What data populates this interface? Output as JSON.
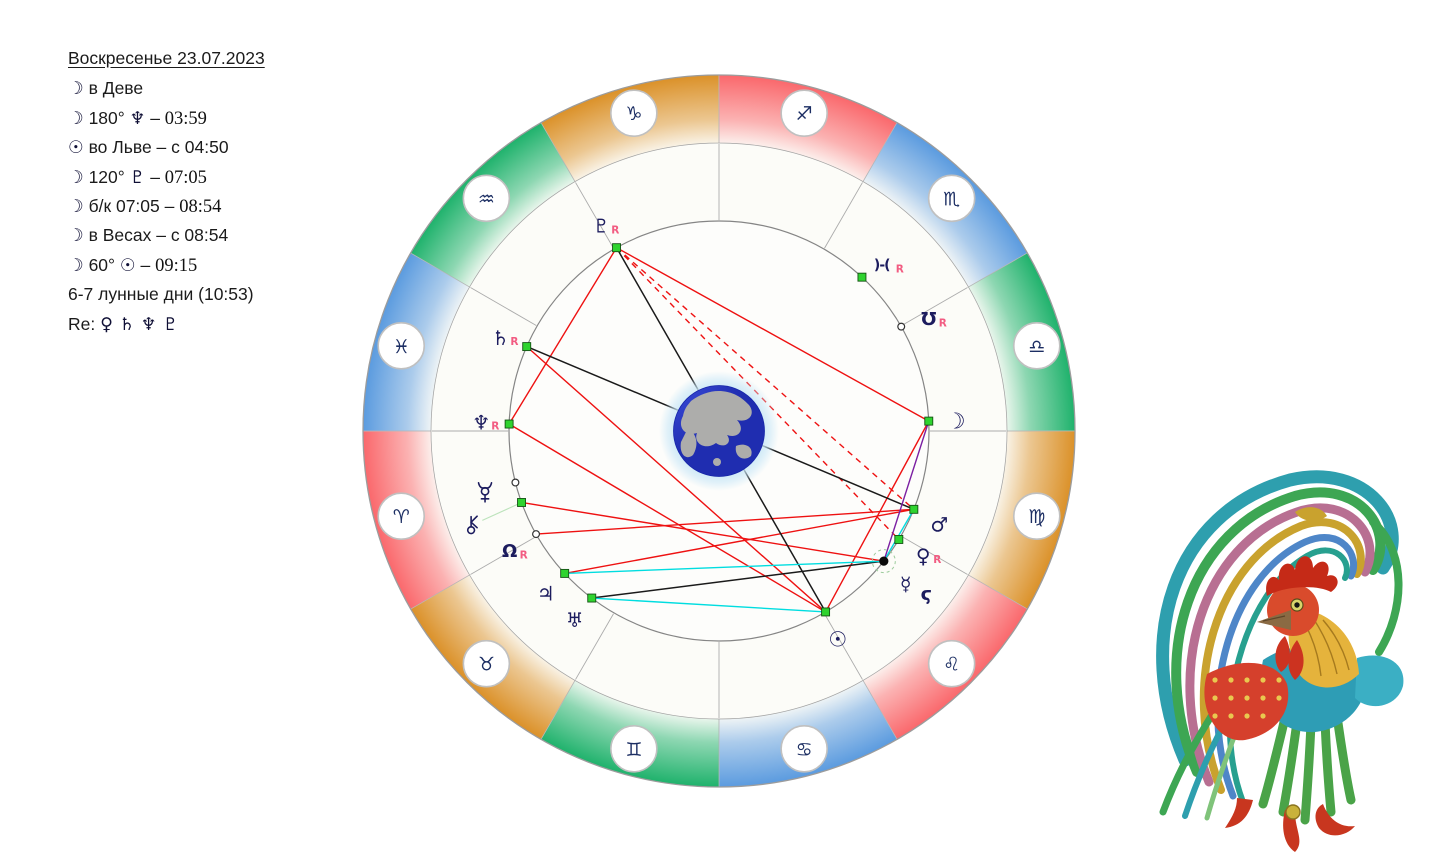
{
  "info_panel": {
    "title": "Воскресенье  23.07.2023",
    "lines": [
      {
        "segments": [
          {
            "k": "g",
            "t": "☽"
          },
          {
            "k": "t",
            "t": " в Деве"
          }
        ]
      },
      {
        "segments": [
          {
            "k": "g",
            "t": "☽"
          },
          {
            "k": "t",
            "t": " 180° "
          },
          {
            "k": "g",
            "t": "♆"
          },
          {
            "k": "t",
            "t": "  –  "
          },
          {
            "k": "s",
            "t": "03:59"
          }
        ]
      },
      {
        "segments": [
          {
            "k": "g",
            "t": "☉"
          },
          {
            "k": "t",
            "t": " во Льве  –  с 04:50"
          }
        ]
      },
      {
        "segments": [
          {
            "k": "g",
            "t": "☽"
          },
          {
            "k": "t",
            "t": " 120° "
          },
          {
            "k": "g",
            "t": "♇"
          },
          {
            "k": "t",
            "t": "  –  "
          },
          {
            "k": "s",
            "t": "07:05"
          }
        ]
      },
      {
        "segments": [
          {
            "k": "g",
            "t": "☽"
          },
          {
            "k": "t",
            "t": "  б/к  07:05 – "
          },
          {
            "k": "s",
            "t": "08:54"
          }
        ]
      },
      {
        "segments": [
          {
            "k": "g",
            "t": "☽"
          },
          {
            "k": "t",
            "t": " в Весах  –  с 08:54"
          }
        ]
      },
      {
        "segments": [
          {
            "k": "g",
            "t": "☽"
          },
          {
            "k": "t",
            "t": "  60° "
          },
          {
            "k": "g",
            "t": "☉"
          },
          {
            "k": "t",
            "t": "  –  "
          },
          {
            "k": "s",
            "t": "09:15"
          }
        ]
      },
      {
        "segments": [
          {
            "k": "t",
            "t": "6-7 лунные дни (10:53)"
          }
        ]
      },
      {
        "segments": [
          {
            "k": "t",
            "t": "Re:  "
          },
          {
            "k": "g",
            "t": "♀  ♄  ♆  ♇"
          }
        ]
      }
    ]
  },
  "wheel": {
    "colors": {
      "fire": "#FA686C",
      "earth": "#DB9129",
      "air": "#1FB26C",
      "water": "#5B9BDF",
      "badge_glyph": "#1c2e63",
      "badge_border": "#c0c0c0",
      "aspect_red": "#EE1111",
      "aspect_black": "#1A1A1A",
      "aspect_cyan": "#00DDE0",
      "aspect_purple": "#7B1FA2",
      "pointer_green": "#BCE3BB",
      "halo_green": "#9CCB9C",
      "dot_green": "#2FD32F",
      "retro_label": "#F25C82",
      "planet_glyph": "#1c1c5e",
      "earth_sea": "#2B3BD4",
      "earth_land": "#ADADAB",
      "earth_glow": "#C9E7F7"
    },
    "signs": [
      {
        "name": "capricorn",
        "glyph": "♑",
        "element": "earth",
        "angle": 345
      },
      {
        "name": "sagittarius",
        "glyph": "♐",
        "element": "fire",
        "angle": 15
      },
      {
        "name": "scorpio",
        "glyph": "♏",
        "element": "water",
        "angle": 45
      },
      {
        "name": "libra",
        "glyph": "♎",
        "element": "air",
        "angle": 75
      },
      {
        "name": "virgo",
        "glyph": "♍",
        "element": "earth",
        "angle": 105
      },
      {
        "name": "leo",
        "glyph": "♌",
        "element": "fire",
        "angle": 135
      },
      {
        "name": "cancer",
        "glyph": "♋",
        "element": "water",
        "angle": 165
      },
      {
        "name": "gemini",
        "glyph": "♊",
        "element": "air",
        "angle": 195
      },
      {
        "name": "taurus",
        "glyph": "♉",
        "element": "earth",
        "angle": 225
      },
      {
        "name": "aries",
        "glyph": "♈",
        "element": "fire",
        "angle": 255
      },
      {
        "name": "pisces",
        "glyph": "♓",
        "element": "water",
        "angle": 285
      },
      {
        "name": "aquarius",
        "glyph": "♒",
        "element": "air",
        "angle": 315
      }
    ],
    "planets": [
      {
        "name": "pluto",
        "glyph": "♇",
        "retro": true,
        "angle": 330.8,
        "dot": "green",
        "glyph_angle": 330.2,
        "glyph_r": 237,
        "size": 19
      },
      {
        "name": "saturn",
        "glyph": "♄",
        "retro": true,
        "angle": 293.7,
        "dot": "green",
        "glyph_angle": 293.3,
        "glyph_r": 238,
        "size": 20
      },
      {
        "name": "neptune",
        "glyph": "♆",
        "retro": true,
        "angle": 271.9,
        "dot": "green",
        "glyph_angle": 272.3,
        "glyph_r": 238,
        "size": 20
      },
      {
        "name": "proserpina",
        "glyph": "svg:proserpina",
        "retro": false,
        "angle": 255.8,
        "dot": "open",
        "glyph_angle": 255.2,
        "glyph_r": 242,
        "size": 20
      },
      {
        "name": "chiron",
        "glyph": "svg:chiron",
        "retro": false,
        "angle": 250.1,
        "dot": "green",
        "glyph_angle": 249.3,
        "glyph_r": 265,
        "size": 20,
        "pointer": true
      },
      {
        "name": "north-node",
        "glyph": "Ω",
        "retro": true,
        "angle": 240.6,
        "dot": "open",
        "glyph_angle": 240.3,
        "glyph_r": 241,
        "size": 18
      },
      {
        "name": "jupiter",
        "glyph": "♃",
        "retro": false,
        "angle": 227.3,
        "dot": "green",
        "glyph_angle": 227.0,
        "glyph_r": 237,
        "size": 20
      },
      {
        "name": "uranus",
        "glyph": "♅",
        "retro": false,
        "angle": 217.3,
        "dot": "green",
        "glyph_angle": 217.5,
        "glyph_r": 237,
        "size": 20
      },
      {
        "name": "sun",
        "glyph": "☉",
        "retro": false,
        "angle": 149.5,
        "dot": "green",
        "glyph_angle": 150.2,
        "glyph_r": 239,
        "size": 21
      },
      {
        "name": "mercury",
        "glyph": "☿",
        "retro": false,
        "angle": 128.3,
        "dot": "black",
        "glyph_angle": 129.2,
        "glyph_r": 241,
        "size": 19,
        "halo": true
      },
      {
        "name": "selena",
        "glyph": "ϛ",
        "retro": false,
        "angle": null,
        "dot": "none",
        "glyph_angle": 128.0,
        "glyph_r": 263,
        "size": 19
      },
      {
        "name": "venus",
        "glyph": "♀",
        "retro": true,
        "angle": 121.1,
        "dot": "green",
        "glyph_angle": 121.3,
        "glyph_r": 239,
        "size": 20
      },
      {
        "name": "mars",
        "glyph": "♂",
        "retro": false,
        "angle": 111.9,
        "dot": "green",
        "glyph_angle": 112.8,
        "glyph_r": 239,
        "size": 20
      },
      {
        "name": "moon",
        "glyph": "☽",
        "retro": false,
        "angle": 87.3,
        "dot": "green",
        "glyph_angle": 87.6,
        "glyph_r": 237,
        "size": 22
      },
      {
        "name": "lilith",
        "glyph": ")-(",
        "retro": true,
        "angle": 42.9,
        "dot": "green",
        "glyph_angle": 44.3,
        "glyph_r": 233,
        "size": 14
      },
      {
        "name": "south-node",
        "glyph": "Ʊ",
        "retro": true,
        "angle": 60.2,
        "dot": "open",
        "glyph_angle": 61.8,
        "glyph_r": 238,
        "size": 18
      }
    ],
    "aspects": [
      {
        "from": "pluto",
        "to": "neptune",
        "color": "red",
        "style": "solid"
      },
      {
        "from": "pluto",
        "to": "moon",
        "color": "red",
        "style": "solid"
      },
      {
        "from": "neptune",
        "to": "sun",
        "color": "red",
        "style": "solid"
      },
      {
        "from": "saturn",
        "to": "sun",
        "color": "red",
        "style": "solid"
      },
      {
        "from": "chiron",
        "to": "mercury",
        "color": "red",
        "style": "solid"
      },
      {
        "from": "jupiter",
        "to": "mars",
        "color": "red",
        "style": "solid"
      },
      {
        "from": "north-node",
        "to": "mars",
        "color": "red",
        "style": "solid"
      },
      {
        "from": "sun",
        "to": "moon",
        "color": "red",
        "style": "solid"
      },
      {
        "from": "pluto",
        "to": "mars",
        "color": "red",
        "style": "dashed"
      },
      {
        "from": "pluto",
        "to": "venus",
        "color": "red",
        "style": "dashed"
      },
      {
        "from": "pluto",
        "to": "sun",
        "color": "black",
        "style": "solid"
      },
      {
        "from": "saturn",
        "to": "mars",
        "color": "black",
        "style": "solid"
      },
      {
        "from": "uranus",
        "to": "mercury",
        "color": "black",
        "style": "solid"
      },
      {
        "from": "jupiter",
        "to": "mercury",
        "color": "cyan",
        "style": "solid"
      },
      {
        "from": "uranus",
        "to": "sun",
        "color": "cyan",
        "style": "solid"
      },
      {
        "from": "mars",
        "to": "mercury",
        "color": "cyan",
        "style": "solid"
      },
      {
        "from": "moon",
        "to": "mercury",
        "color": "purple",
        "style": "solid"
      }
    ]
  },
  "rooster": {
    "palette": [
      "#2E9FAE",
      "#3DA653",
      "#C9A22E",
      "#B86F92",
      "#4E86C8",
      "#27A08F",
      "#7FC37A",
      "#D5402C",
      "#E5B33C",
      "#2E9DB5",
      "#4AA348",
      "#C8361F",
      "#3BAFC4"
    ]
  }
}
